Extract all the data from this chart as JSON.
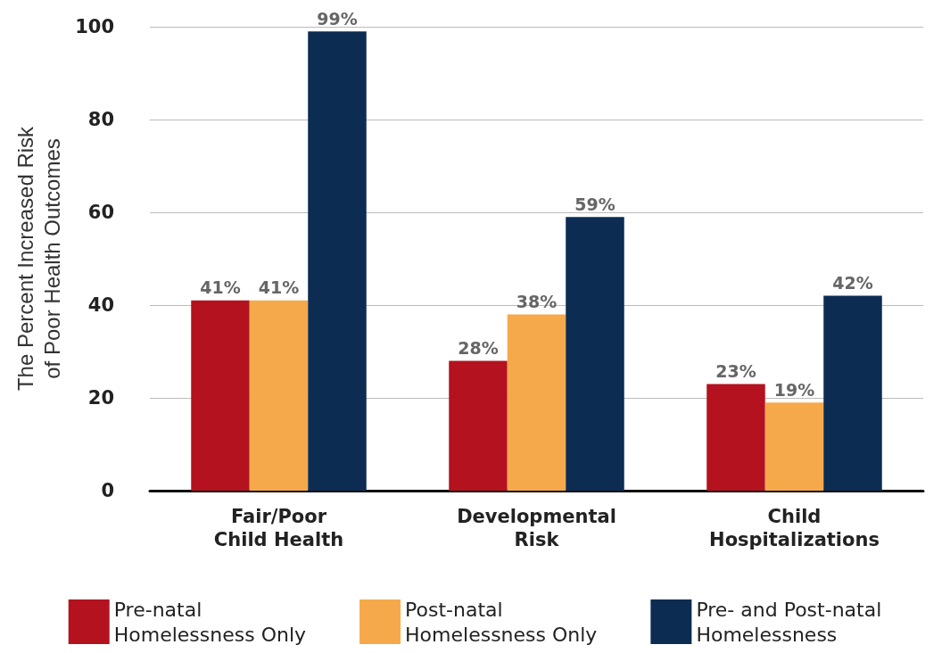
{
  "chart_data": {
    "type": "bar",
    "ylabel": "The Percent Increased Risk\nof Poor Health Outcomes",
    "categories": [
      "Fair/Poor\nChild Health",
      "Developmental\nRisk",
      "Child\nHospitalizations"
    ],
    "series": [
      {
        "name": "Pre-natal\nHomelessness Only",
        "color": "#b3121e",
        "values": [
          41,
          28,
          23
        ],
        "value_labels": [
          "41%",
          "28%",
          "23%"
        ]
      },
      {
        "name": "Post-natal\nHomelessness Only",
        "color": "#f6a94b",
        "values": [
          41,
          38,
          19
        ],
        "value_labels": [
          "41%",
          "38%",
          "19%"
        ]
      },
      {
        "name": "Pre- and Post-natal\nHomelessness",
        "color": "#0c2c52",
        "values": [
          99,
          59,
          42
        ],
        "value_labels": [
          "99%",
          "59%",
          "42%"
        ]
      }
    ],
    "ylim": [
      0,
      100
    ],
    "yticks": [
      0,
      20,
      40,
      60,
      80,
      100
    ],
    "grid": "y",
    "legend": "bottom"
  }
}
